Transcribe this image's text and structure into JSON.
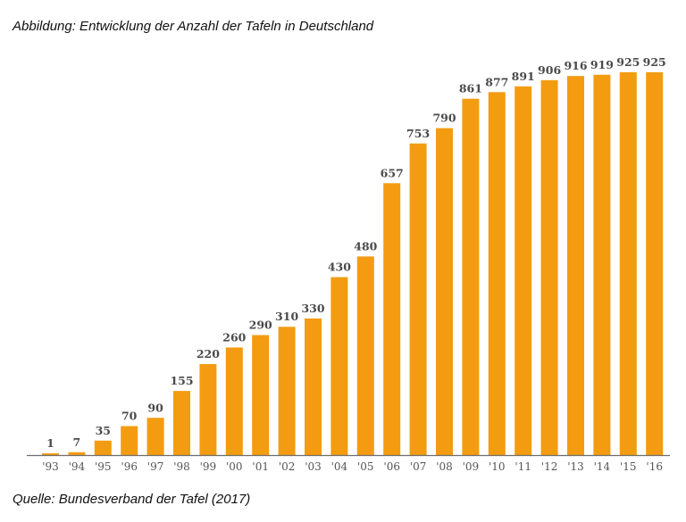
{
  "figure_caption": "Abbildung: Entwicklung der Anzahl der Tafeln in Deutschland",
  "source_caption": "Quelle: Bundesverband der Tafel (2017)",
  "colors": {
    "bar": "#f39c11",
    "axis": "#6e6e6e",
    "value_label": "#4a4a4a",
    "tick_label": "#555555"
  },
  "chart_data": {
    "type": "bar",
    "categories": [
      "'93",
      "'94",
      "'95",
      "'96",
      "'97",
      "'98",
      "'99",
      "'00",
      "'01",
      "'02",
      "'03",
      "'04",
      "'05",
      "'06",
      "'07",
      "'08",
      "'09",
      "'10",
      "'11",
      "'12",
      "'13",
      "'14",
      "'15",
      "'16"
    ],
    "values": [
      1,
      7,
      35,
      70,
      90,
      155,
      220,
      260,
      290,
      310,
      330,
      430,
      480,
      657,
      753,
      790,
      861,
      877,
      891,
      906,
      916,
      919,
      925,
      925
    ],
    "title": "",
    "xlabel": "",
    "ylabel": "",
    "ylim": [
      0,
      925
    ],
    "grid": false,
    "legend": "none",
    "data_labels": true
  }
}
